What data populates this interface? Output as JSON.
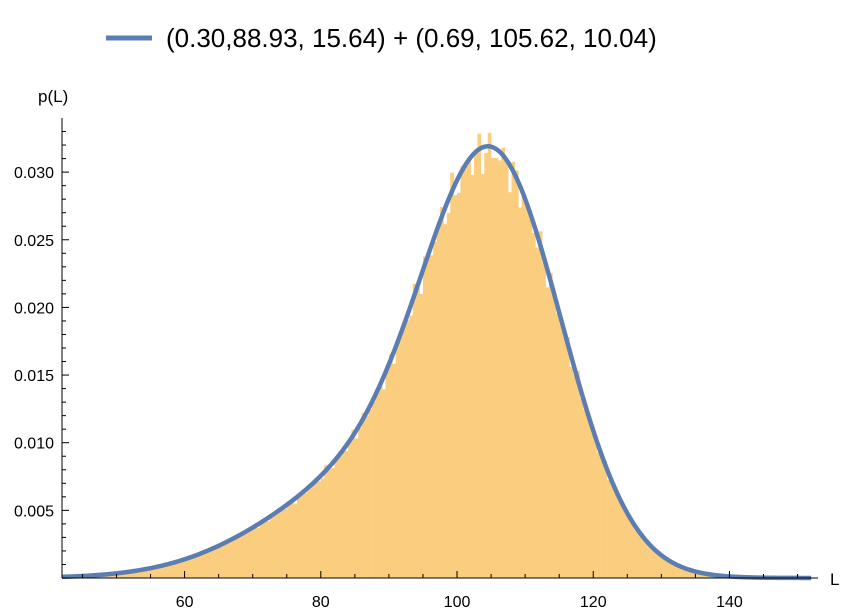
{
  "colors": {
    "histogram": "#FBCD7E",
    "fit_line": "#5B7DB1",
    "axis": "#000000"
  },
  "chart_data": {
    "type": "bar",
    "subtype": "histogram with fitted curve",
    "legend": {
      "placement": "top",
      "entries": [
        {
          "label": "(0.30,88.93, 15.64) + (0.69, 105.62, 10.04)",
          "series": "fit"
        }
      ]
    },
    "xlabel": "L",
    "ylabel": "p(L)",
    "xlim": [
      42,
      153
    ],
    "ylim": [
      0,
      0.034
    ],
    "x_ticks": [
      60,
      80,
      100,
      120,
      140
    ],
    "x_tick_labels": [
      "60",
      "80",
      "100",
      "120",
      "140"
    ],
    "y_ticks": [
      0.005,
      0.01,
      0.015,
      0.02,
      0.025,
      0.03
    ],
    "y_tick_labels": [
      "0.005",
      "0.010",
      "0.015",
      "0.020",
      "0.025",
      "0.030"
    ],
    "grid": false,
    "histogram": {
      "bin_start": 45,
      "bin_width": 0.5,
      "x_end": 140
    },
    "series": [
      {
        "type": "line",
        "components": [
          {
            "weight": 0.3,
            "mean": 88.93,
            "sd": 15.64
          },
          {
            "weight": 0.69,
            "mean": 105.62,
            "sd": 10.04
          }
        ],
        "x_range": [
          42,
          152
        ]
      }
    ]
  }
}
